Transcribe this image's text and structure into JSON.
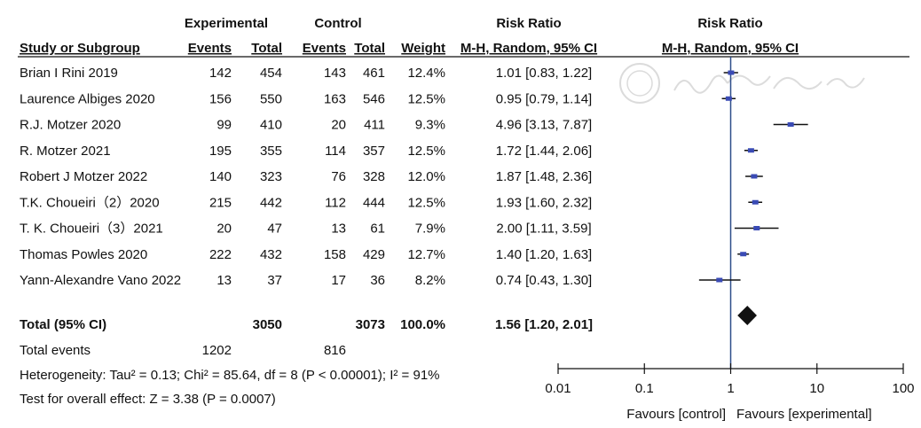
{
  "chart_data": {
    "type": "forest",
    "headers": {
      "experimental": "Experimental",
      "control": "Control",
      "risk_ratio_left": "Risk Ratio",
      "risk_ratio_right": "Risk Ratio",
      "study": "Study or Subgroup",
      "events_exp": "Events",
      "total_exp": "Total",
      "events_ctl": "Events",
      "total_ctl": "Total",
      "weight": "Weight",
      "method_left": "M-H, Random, 95% CI",
      "method_right": "M-H, Random, 95% CI"
    },
    "studies": [
      {
        "name": "Brian I Rini 2019",
        "e_events": "142",
        "e_total": "454",
        "c_events": "143",
        "c_total": "461",
        "weight": "12.4%",
        "ci_text": "1.01 [0.83, 1.22]",
        "rr": 1.01,
        "lo": 0.83,
        "hi": 1.22
      },
      {
        "name": "Laurence Albiges 2020",
        "e_events": "156",
        "e_total": "550",
        "c_events": "163",
        "c_total": "546",
        "weight": "12.5%",
        "ci_text": "0.95 [0.79, 1.14]",
        "rr": 0.95,
        "lo": 0.79,
        "hi": 1.14
      },
      {
        "name": "R.J. Motzer 2020",
        "e_events": "99",
        "e_total": "410",
        "c_events": "20",
        "c_total": "411",
        "weight": "9.3%",
        "ci_text": "4.96 [3.13, 7.87]",
        "rr": 4.96,
        "lo": 3.13,
        "hi": 7.87
      },
      {
        "name": "R. Motzer 2021",
        "e_events": "195",
        "e_total": "355",
        "c_events": "114",
        "c_total": "357",
        "weight": "12.5%",
        "ci_text": "1.72 [1.44, 2.06]",
        "rr": 1.72,
        "lo": 1.44,
        "hi": 2.06
      },
      {
        "name": "Robert J Motzer 2022",
        "e_events": "140",
        "e_total": "323",
        "c_events": "76",
        "c_total": "328",
        "weight": "12.0%",
        "ci_text": "1.87 [1.48, 2.36]",
        "rr": 1.87,
        "lo": 1.48,
        "hi": 2.36
      },
      {
        "name": "T.K. Choueiri（2）2020",
        "e_events": "215",
        "e_total": "442",
        "c_events": "112",
        "c_total": "444",
        "weight": "12.5%",
        "ci_text": "1.93 [1.60, 2.32]",
        "rr": 1.93,
        "lo": 1.6,
        "hi": 2.32
      },
      {
        "name": "T. K. Choueiri（3）2021",
        "e_events": "20",
        "e_total": "47",
        "c_events": "13",
        "c_total": "61",
        "weight": "7.9%",
        "ci_text": "2.00 [1.11, 3.59]",
        "rr": 2.0,
        "lo": 1.11,
        "hi": 3.59
      },
      {
        "name": "Thomas Powles 2020",
        "e_events": "222",
        "e_total": "432",
        "c_events": "158",
        "c_total": "429",
        "weight": "12.7%",
        "ci_text": "1.40 [1.20, 1.63]",
        "rr": 1.4,
        "lo": 1.2,
        "hi": 1.63
      },
      {
        "name": "Yann-Alexandre Vano 2022",
        "e_events": "13",
        "e_total": "37",
        "c_events": "17",
        "c_total": "36",
        "weight": "8.2%",
        "ci_text": "0.74 [0.43, 1.30]",
        "rr": 0.74,
        "lo": 0.43,
        "hi": 1.3
      }
    ],
    "total": {
      "label": "Total (95% CI)",
      "e_total": "3050",
      "c_total": "3073",
      "weight": "100.0%",
      "ci_text": "1.56 [1.20, 2.01]",
      "rr": 1.56,
      "lo": 1.2,
      "hi": 2.01
    },
    "total_events": {
      "label": "Total events",
      "e_events": "1202",
      "c_events": "816"
    },
    "heterogeneity": "Heterogeneity: Tau² = 0.13; Chi² = 85.64, df = 8 (P < 0.00001); I² = 91%",
    "overall_effect": "Test for overall effect: Z = 3.38 (P = 0.0007)",
    "x_axis": {
      "scale": "log",
      "range": [
        0.01,
        100
      ],
      "ticks": [
        "0.01",
        "0.1",
        "1",
        "10",
        "100"
      ],
      "tick_values": [
        0.01,
        0.1,
        1,
        10,
        100
      ]
    },
    "favours_left": "Favours [control]",
    "favours_right": "Favours [experimental]",
    "watermark": "中华医学会",
    "colors": {
      "point": "#3a4bb5",
      "diamond": "#111111",
      "reference_line": "#2e4d8a",
      "text": "#111111"
    }
  }
}
